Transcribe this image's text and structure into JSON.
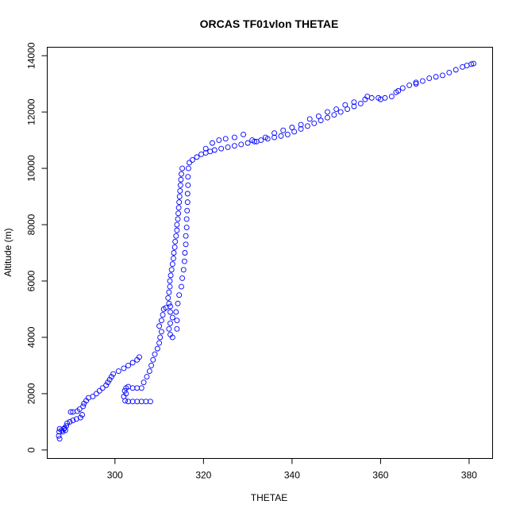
{
  "chart_data": {
    "type": "scatter",
    "title": "ORCAS TF01vlon THETAE",
    "xlabel": "THETAE",
    "ylabel": "Altitude (m)",
    "xlim": [
      284.7,
      385.3
    ],
    "ylim": [
      -300,
      14300
    ],
    "xticks": [
      300,
      320,
      340,
      360,
      380
    ],
    "yticks": [
      0,
      2000,
      4000,
      6000,
      8000,
      10000,
      12000,
      14000
    ],
    "marker_color": "#0000ff",
    "marker": "open-circle",
    "series": [
      {
        "name": "",
        "points": [
          [
            287.5,
            400
          ],
          [
            287.3,
            500
          ],
          [
            287.4,
            650
          ],
          [
            287.5,
            750
          ],
          [
            288.0,
            700
          ],
          [
            288.5,
            750
          ],
          [
            288.2,
            650
          ],
          [
            288.8,
            700
          ],
          [
            288.6,
            780
          ],
          [
            289.0,
            850
          ],
          [
            289.2,
            950
          ],
          [
            289.8,
            1000
          ],
          [
            290.5,
            1050
          ],
          [
            291.3,
            1100
          ],
          [
            292.2,
            1150
          ],
          [
            292.6,
            1250
          ],
          [
            290.0,
            1350
          ],
          [
            290.5,
            1350
          ],
          [
            291.5,
            1380
          ],
          [
            292.0,
            1450
          ],
          [
            292.8,
            1550
          ],
          [
            293.0,
            1650
          ],
          [
            293.5,
            1750
          ],
          [
            294.0,
            1850
          ],
          [
            295.0,
            1900
          ],
          [
            295.8,
            2000
          ],
          [
            296.5,
            2100
          ],
          [
            297.2,
            2200
          ],
          [
            298.0,
            2300
          ],
          [
            298.4,
            2400
          ],
          [
            298.8,
            2500
          ],
          [
            299.2,
            2600
          ],
          [
            299.6,
            2700
          ],
          [
            300.8,
            2800
          ],
          [
            302.0,
            2900
          ],
          [
            303.0,
            3000
          ],
          [
            304.0,
            3100
          ],
          [
            305.0,
            3200
          ],
          [
            305.5,
            3300
          ],
          [
            302.0,
            1900
          ],
          [
            302.5,
            2000
          ],
          [
            302.2,
            2100
          ],
          [
            302.5,
            2200
          ],
          [
            303.0,
            2250
          ],
          [
            304.0,
            2200
          ],
          [
            305.0,
            2200
          ],
          [
            306.0,
            2200
          ],
          [
            302.3,
            1750
          ],
          [
            303.0,
            1720
          ],
          [
            304.0,
            1720
          ],
          [
            305.0,
            1720
          ],
          [
            306.0,
            1720
          ],
          [
            307.0,
            1720
          ],
          [
            308.0,
            1720
          ],
          [
            306.5,
            2400
          ],
          [
            307.2,
            2600
          ],
          [
            307.8,
            2800
          ],
          [
            308.2,
            3000
          ],
          [
            308.6,
            3200
          ],
          [
            309.0,
            3400
          ],
          [
            309.6,
            3600
          ],
          [
            310.0,
            3800
          ],
          [
            310.2,
            4000
          ],
          [
            310.5,
            4200
          ],
          [
            310.0,
            4400
          ],
          [
            310.5,
            4600
          ],
          [
            310.8,
            4800
          ],
          [
            311.0,
            5000
          ],
          [
            311.5,
            5050
          ],
          [
            312.5,
            5100
          ],
          [
            312.5,
            4900
          ],
          [
            313.0,
            4700
          ],
          [
            312.5,
            4500
          ],
          [
            312.2,
            4300
          ],
          [
            312.5,
            4100
          ],
          [
            313.0,
            4000
          ],
          [
            312.2,
            5200
          ],
          [
            312.0,
            5400
          ],
          [
            312.2,
            5600
          ],
          [
            312.4,
            5800
          ],
          [
            312.4,
            6000
          ],
          [
            312.6,
            6200
          ],
          [
            312.8,
            6400
          ],
          [
            313.0,
            6600
          ],
          [
            313.2,
            6800
          ],
          [
            313.3,
            7000
          ],
          [
            313.5,
            7200
          ],
          [
            313.6,
            7400
          ],
          [
            313.8,
            7600
          ],
          [
            314.0,
            7800
          ],
          [
            314.0,
            8000
          ],
          [
            314.2,
            8200
          ],
          [
            314.3,
            8400
          ],
          [
            314.4,
            8600
          ],
          [
            314.5,
            8800
          ],
          [
            314.6,
            9000
          ],
          [
            314.7,
            9200
          ],
          [
            314.8,
            9400
          ],
          [
            314.9,
            9600
          ],
          [
            315.0,
            9800
          ],
          [
            315.2,
            10000
          ],
          [
            314.0,
            4300
          ],
          [
            314.0,
            4600
          ],
          [
            313.8,
            4900
          ],
          [
            314.2,
            5200
          ],
          [
            314.5,
            5500
          ],
          [
            315.0,
            5800
          ],
          [
            315.2,
            6100
          ],
          [
            315.5,
            6400
          ],
          [
            315.7,
            6700
          ],
          [
            315.8,
            7000
          ],
          [
            316.0,
            7300
          ],
          [
            316.0,
            7600
          ],
          [
            316.2,
            7900
          ],
          [
            316.2,
            8200
          ],
          [
            316.3,
            8500
          ],
          [
            316.4,
            8800
          ],
          [
            316.4,
            9100
          ],
          [
            316.5,
            9400
          ],
          [
            316.5,
            9700
          ],
          [
            316.6,
            10000
          ],
          [
            316.8,
            10200
          ],
          [
            317.5,
            10300
          ],
          [
            318.5,
            10400
          ],
          [
            319.5,
            10500
          ],
          [
            320.5,
            10550
          ],
          [
            321.5,
            10600
          ],
          [
            322.5,
            10650
          ],
          [
            324.0,
            10700
          ],
          [
            325.5,
            10750
          ],
          [
            327.0,
            10800
          ],
          [
            328.5,
            10850
          ],
          [
            330.0,
            10900
          ],
          [
            331.5,
            10950
          ],
          [
            333.0,
            11000
          ],
          [
            334.5,
            11050
          ],
          [
            336.0,
            11100
          ],
          [
            337.5,
            11150
          ],
          [
            339.0,
            11200
          ],
          [
            340.5,
            11300
          ],
          [
            342.0,
            11400
          ],
          [
            343.5,
            11500
          ],
          [
            345.0,
            11600
          ],
          [
            346.5,
            11700
          ],
          [
            348.0,
            11800
          ],
          [
            349.5,
            11900
          ],
          [
            351.0,
            12000
          ],
          [
            352.5,
            12100
          ],
          [
            354.0,
            12200
          ],
          [
            355.5,
            12300
          ],
          [
            356.5,
            12450
          ],
          [
            358.0,
            12500
          ],
          [
            359.5,
            12500
          ],
          [
            361.0,
            12500
          ],
          [
            362.5,
            12550
          ],
          [
            363.5,
            12700
          ],
          [
            365.0,
            12850
          ],
          [
            366.5,
            12950
          ],
          [
            368.0,
            13050
          ],
          [
            369.5,
            13100
          ],
          [
            371.0,
            13200
          ],
          [
            372.5,
            13250
          ],
          [
            374.0,
            13300
          ],
          [
            375.5,
            13400
          ],
          [
            377.0,
            13500
          ],
          [
            378.5,
            13600
          ],
          [
            379.5,
            13650
          ],
          [
            380.5,
            13700
          ],
          [
            381.0,
            13720
          ],
          [
            320.5,
            10700
          ],
          [
            322.0,
            10900
          ],
          [
            323.5,
            11000
          ],
          [
            325.0,
            11050
          ],
          [
            327.0,
            11100
          ],
          [
            329.0,
            11200
          ],
          [
            331.0,
            11000
          ],
          [
            332.0,
            10950
          ],
          [
            334.0,
            11100
          ],
          [
            336.0,
            11250
          ],
          [
            338.0,
            11350
          ],
          [
            340.0,
            11450
          ],
          [
            342.0,
            11550
          ],
          [
            344.0,
            11750
          ],
          [
            346.0,
            11850
          ],
          [
            348.0,
            12000
          ],
          [
            350.0,
            12100
          ],
          [
            352.0,
            12250
          ],
          [
            354.0,
            12350
          ],
          [
            357.0,
            12550
          ],
          [
            360.0,
            12450
          ],
          [
            364.0,
            12750
          ],
          [
            368.0,
            13000
          ]
        ]
      }
    ]
  }
}
